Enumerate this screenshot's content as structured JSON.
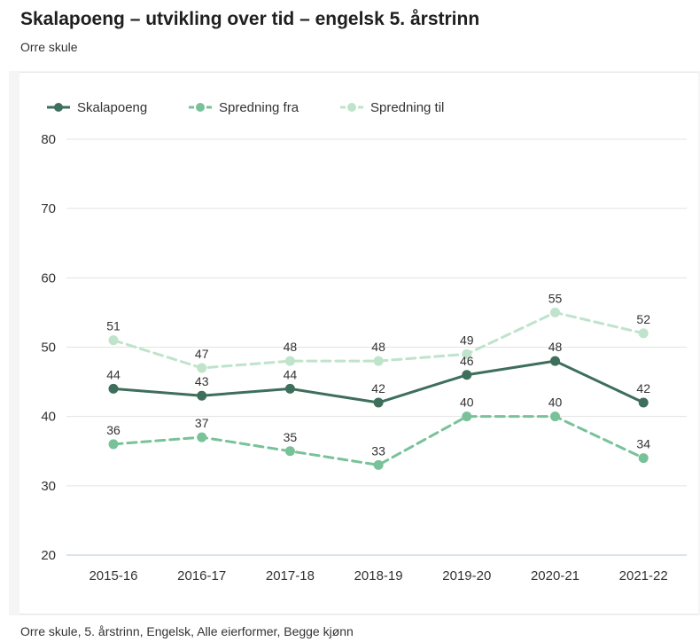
{
  "header": {
    "title": "Skalapoeng – utvikling over tid – engelsk 5. årstrinn",
    "subtitle": "Orre skule"
  },
  "footer": {
    "text": "Orre skule, 5. årstrinn, Engelsk, Alle eierformer, Begge kjønn"
  },
  "chart_data": {
    "type": "line",
    "title": "Skalapoeng – utvikling over tid – engelsk 5. årstrinn",
    "subtitle": "Orre skule",
    "categories": [
      "2015-16",
      "2016-17",
      "2017-18",
      "2018-19",
      "2019-20",
      "2020-21",
      "2021-22"
    ],
    "series": [
      {
        "name": "Skalapoeng",
        "values": [
          44,
          43,
          44,
          42,
          46,
          48,
          42
        ],
        "color": "#3e6e5c",
        "dashed": false
      },
      {
        "name": "Spredning fra",
        "values": [
          36,
          37,
          35,
          33,
          40,
          40,
          34
        ],
        "color": "#79c299",
        "dashed": true
      },
      {
        "name": "Spredning til",
        "values": [
          51,
          47,
          48,
          48,
          49,
          55,
          52
        ],
        "color": "#bfe3cb",
        "dashed": true
      }
    ],
    "yticks": [
      20,
      30,
      40,
      50,
      60,
      70,
      80
    ],
    "ylim": [
      20,
      80
    ],
    "xlabel": "",
    "ylabel": "",
    "grid": true,
    "legend": "top-left",
    "data_labels": true
  }
}
